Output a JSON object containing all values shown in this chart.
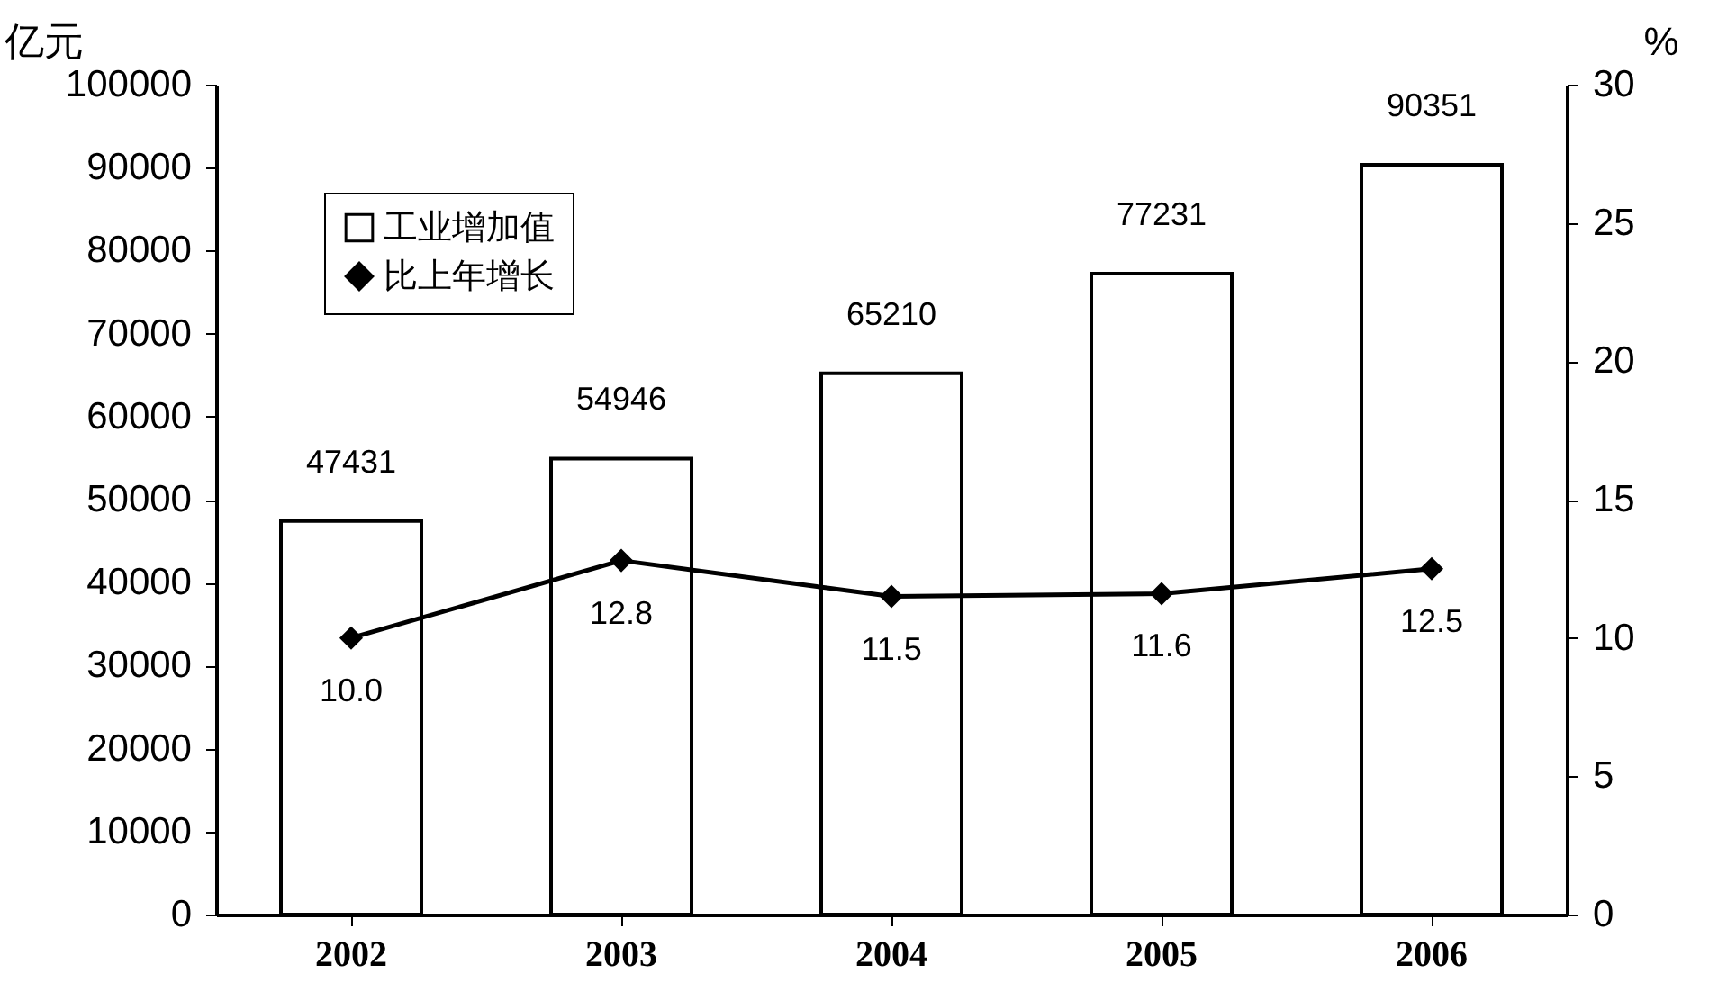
{
  "chart_data": {
    "type": "bar",
    "categories": [
      "2002",
      "2003",
      "2004",
      "2005",
      "2006"
    ],
    "series": [
      {
        "name": "工业增加值",
        "color": "#ffffff",
        "values": [
          47431,
          54946,
          65210,
          77231,
          90351
        ],
        "value_labels": [
          "47431",
          "54946",
          "65210",
          "77231",
          "90351"
        ]
      },
      {
        "name": "比上年增长",
        "type": "line",
        "axis": "y2",
        "color": "#000000",
        "values": [
          10.0,
          12.8,
          11.5,
          11.6,
          12.5
        ],
        "value_labels": [
          "10.0",
          "12.8",
          "11.5",
          "11.6",
          "12.5"
        ]
      }
    ],
    "ylabel": "亿元",
    "y2label": "%",
    "ylim": [
      0,
      100000
    ],
    "yticks": [
      0,
      10000,
      20000,
      30000,
      40000,
      50000,
      60000,
      70000,
      80000,
      90000,
      100000
    ],
    "y2lim": [
      0,
      30
    ],
    "y2ticks": [
      0,
      5,
      10,
      15,
      20,
      25,
      30
    ],
    "legend": "top left",
    "marker": "diamond"
  }
}
